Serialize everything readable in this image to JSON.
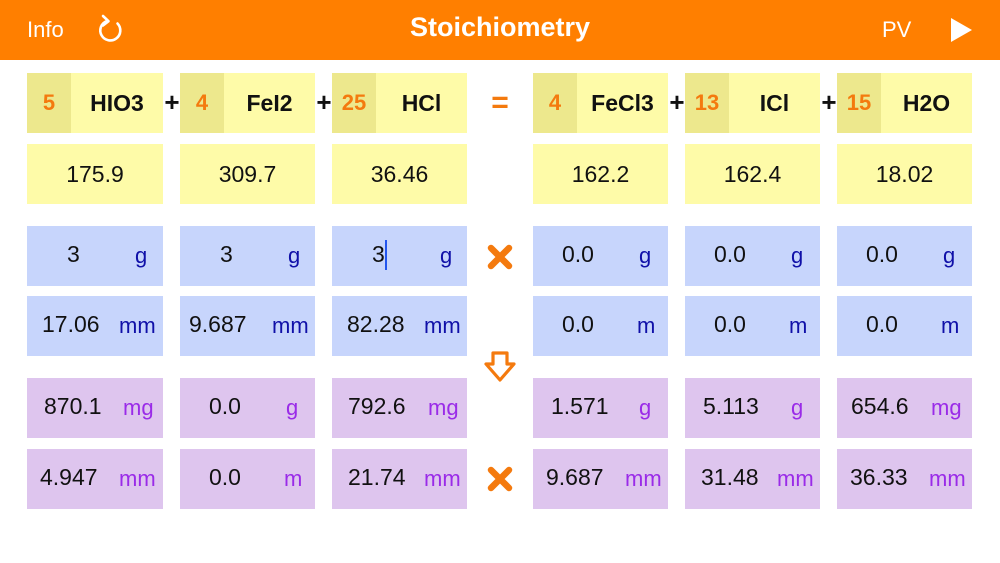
{
  "header": {
    "info_label": "Info",
    "title": "Stoichiometry",
    "pv_label": "PV",
    "icons": {
      "refresh": "refresh-icon",
      "play": "play-icon"
    }
  },
  "colors": {
    "accent": "#FF7F00",
    "formula_bg": "#FEFBA8",
    "coef_bg": "#EDE88D",
    "mass_bg": "#C7D5FC",
    "result_bg": "#DEC5EE",
    "unit_blue": "#1010A8",
    "unit_purple": "#9A2BE8"
  },
  "equation": {
    "plus": "+",
    "equals": "=",
    "reactants": [
      {
        "coef": "5",
        "formula": "HIO3",
        "mw": "175.9",
        "mass": {
          "value": "3",
          "unit": "g"
        },
        "moles": {
          "value": "17.06",
          "unit": "mm"
        },
        "result_mass": {
          "value": "870.1",
          "unit": "mg"
        },
        "result_moles": {
          "value": "4.947",
          "unit": "mm"
        }
      },
      {
        "coef": "4",
        "formula": "FeI2",
        "mw": "309.7",
        "mass": {
          "value": "3",
          "unit": "g"
        },
        "moles": {
          "value": "9.687",
          "unit": "mm"
        },
        "result_mass": {
          "value": "0.0",
          "unit": "g"
        },
        "result_moles": {
          "value": "0.0",
          "unit": "m"
        }
      },
      {
        "coef": "25",
        "formula": "HCl",
        "mw": "36.46",
        "mass": {
          "value": "3",
          "unit": "g"
        },
        "moles": {
          "value": "82.28",
          "unit": "mm"
        },
        "result_mass": {
          "value": "792.6",
          "unit": "mg"
        },
        "result_moles": {
          "value": "21.74",
          "unit": "mm"
        }
      }
    ],
    "products": [
      {
        "coef": "4",
        "formula": "FeCl3",
        "mw": "162.2",
        "mass": {
          "value": "0.0",
          "unit": "g"
        },
        "moles": {
          "value": "0.0",
          "unit": "m"
        },
        "result_mass": {
          "value": "1.571",
          "unit": "g"
        },
        "result_moles": {
          "value": "9.687",
          "unit": "mm"
        }
      },
      {
        "coef": "13",
        "formula": "ICl",
        "mw": "162.4",
        "mass": {
          "value": "0.0",
          "unit": "g"
        },
        "moles": {
          "value": "0.0",
          "unit": "m"
        },
        "result_mass": {
          "value": "5.113",
          "unit": "g"
        },
        "result_moles": {
          "value": "31.48",
          "unit": "mm"
        }
      },
      {
        "coef": "15",
        "formula": "H2O",
        "mw": "18.02",
        "mass": {
          "value": "0.0",
          "unit": "g"
        },
        "moles": {
          "value": "0.0",
          "unit": "m"
        },
        "result_mass": {
          "value": "654.6",
          "unit": "mg"
        },
        "result_moles": {
          "value": "36.33",
          "unit": "mm"
        }
      }
    ]
  }
}
